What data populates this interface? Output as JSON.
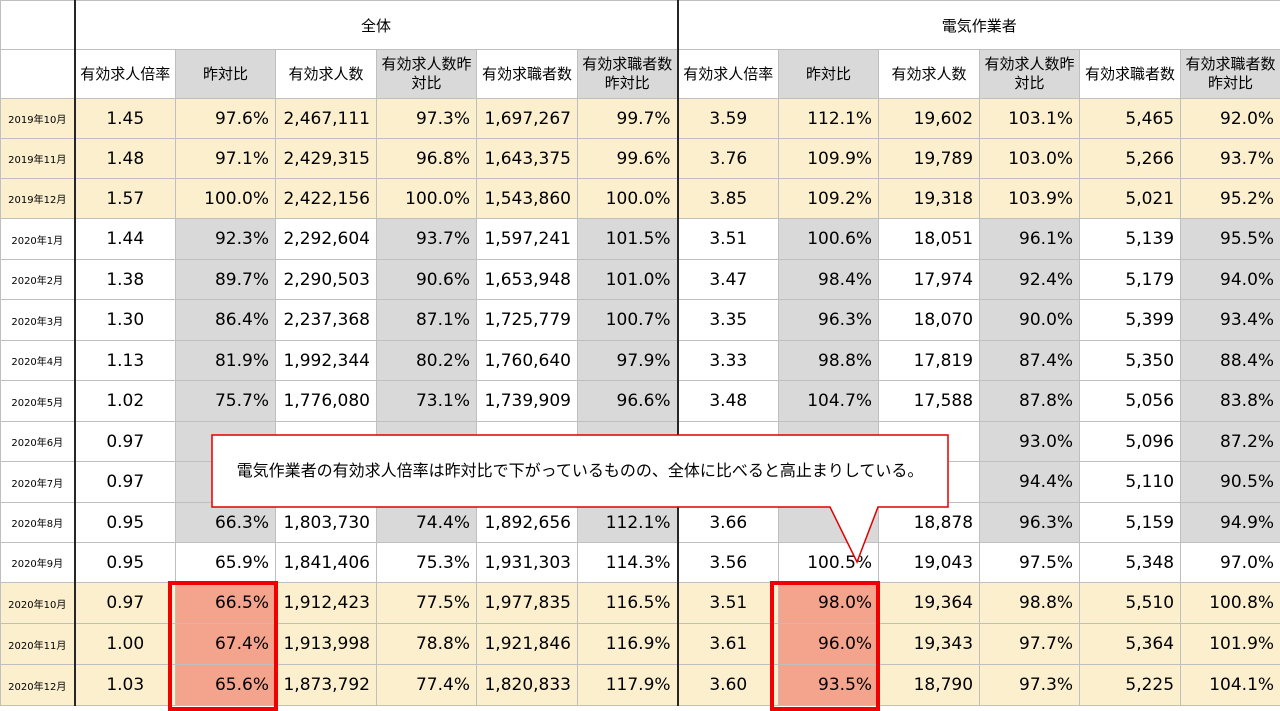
{
  "table": {
    "groups": [
      "全体",
      "電気作業者"
    ],
    "subheaders": [
      "有効求人倍率",
      "昨対比",
      "有効求人数",
      "有効求人数昨対比",
      "有効求職者数",
      "有効求職者数昨対比"
    ],
    "rows": [
      {
        "label": "2019年10月",
        "values": [
          "1.45",
          "97.6%",
          "2,467,111",
          "97.3%",
          "1,697,267",
          "99.7%",
          "3.59",
          "112.1%",
          "19,602",
          "103.1%",
          "5,465",
          "92.0%"
        ]
      },
      {
        "label": "2019年11月",
        "values": [
          "1.48",
          "97.1%",
          "2,429,315",
          "96.8%",
          "1,643,375",
          "99.6%",
          "3.76",
          "109.9%",
          "19,789",
          "103.0%",
          "5,266",
          "93.7%"
        ]
      },
      {
        "label": "2019年12月",
        "values": [
          "1.57",
          "100.0%",
          "2,422,156",
          "100.0%",
          "1,543,860",
          "100.0%",
          "3.85",
          "109.2%",
          "19,318",
          "103.9%",
          "5,021",
          "95.2%"
        ]
      },
      {
        "label": "2020年1月",
        "values": [
          "1.44",
          "92.3%",
          "2,292,604",
          "93.7%",
          "1,597,241",
          "101.5%",
          "3.51",
          "100.6%",
          "18,051",
          "96.1%",
          "5,139",
          "95.5%"
        ]
      },
      {
        "label": "2020年2月",
        "values": [
          "1.38",
          "89.7%",
          "2,290,503",
          "90.6%",
          "1,653,948",
          "101.0%",
          "3.47",
          "98.4%",
          "17,974",
          "92.4%",
          "5,179",
          "94.0%"
        ]
      },
      {
        "label": "2020年3月",
        "values": [
          "1.30",
          "86.4%",
          "2,237,368",
          "87.1%",
          "1,725,779",
          "100.7%",
          "3.35",
          "96.3%",
          "18,070",
          "90.0%",
          "5,399",
          "93.4%"
        ]
      },
      {
        "label": "2020年4月",
        "values": [
          "1.13",
          "81.9%",
          "1,992,344",
          "80.2%",
          "1,760,640",
          "97.9%",
          "3.33",
          "98.8%",
          "17,819",
          "87.4%",
          "5,350",
          "88.4%"
        ]
      },
      {
        "label": "2020年5月",
        "values": [
          "1.02",
          "75.7%",
          "1,776,080",
          "73.1%",
          "1,739,909",
          "96.6%",
          "3.48",
          "104.7%",
          "17,588",
          "87.8%",
          "5,056",
          "83.8%"
        ]
      },
      {
        "label": "2020年6月",
        "values": [
          "0.97",
          "",
          "",
          "",
          "",
          "",
          "",
          "",
          "",
          "93.0%",
          "5,096",
          "87.2%"
        ]
      },
      {
        "label": "2020年7月",
        "values": [
          "0.97",
          "",
          "",
          "",
          "",
          "",
          "",
          "",
          "",
          "94.4%",
          "5,110",
          "90.5%"
        ]
      },
      {
        "label": "2020年8月",
        "values": [
          "0.95",
          "66.3%",
          "1,803,730",
          "74.4%",
          "1,892,656",
          "112.1%",
          "3.66",
          "",
          "18,878",
          "96.3%",
          "5,159",
          "94.9%"
        ]
      },
      {
        "label": "2020年9月",
        "values": [
          "0.95",
          "65.9%",
          "1,841,406",
          "75.3%",
          "1,931,303",
          "114.3%",
          "3.56",
          "100.5%",
          "19,043",
          "97.5%",
          "5,348",
          "97.0%"
        ]
      },
      {
        "label": "2020年10月",
        "values": [
          "0.97",
          "66.5%",
          "1,912,423",
          "77.5%",
          "1,977,835",
          "116.5%",
          "3.51",
          "98.0%",
          "19,364",
          "98.8%",
          "5,510",
          "100.8%"
        ]
      },
      {
        "label": "2020年11月",
        "values": [
          "1.00",
          "67.4%",
          "1,913,998",
          "78.8%",
          "1,921,846",
          "116.9%",
          "3.61",
          "96.0%",
          "19,343",
          "97.7%",
          "5,364",
          "101.9%"
        ]
      },
      {
        "label": "2020年12月",
        "values": [
          "1.03",
          "65.6%",
          "1,873,792",
          "77.4%",
          "1,820,833",
          "117.9%",
          "3.60",
          "93.5%",
          "18,790",
          "97.3%",
          "5,225",
          "104.1%"
        ]
      }
    ]
  },
  "callout": {
    "text": "電気作業者の有効求人倍率は昨対比で下がっているものの、全体に比べると高止まりしている。"
  },
  "colors": {
    "highlight_row": "#fbefce",
    "yoy_gray": "#d9d9d9",
    "emphasis_red_fill": "#f4a38d",
    "emphasis_red_border": "#f00000"
  },
  "chart_data": {
    "type": "table",
    "column_groups": [
      "全体",
      "電気作業者"
    ],
    "columns": [
      "有効求人倍率",
      "昨対比",
      "有効求人数",
      "有効求人数昨対比",
      "有効求職者数",
      "有効求職者数昨対比"
    ]
  }
}
